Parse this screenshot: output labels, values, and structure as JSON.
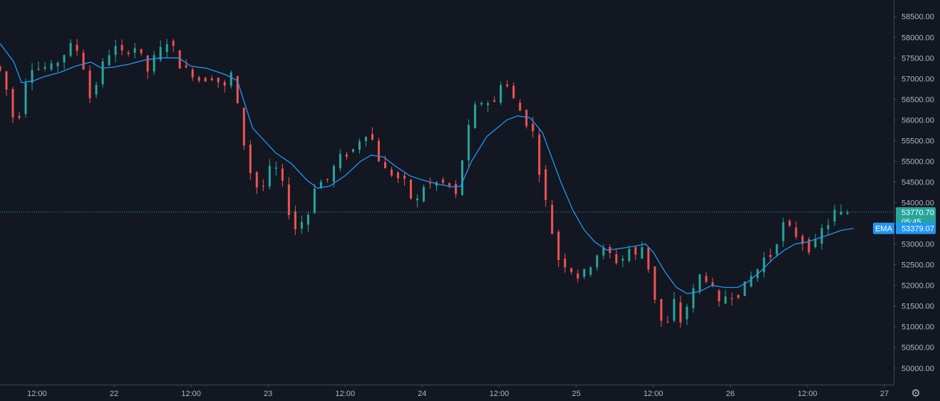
{
  "chart_data": {
    "type": "candlestick",
    "title": "",
    "price_scale": {
      "ylim": [
        49600,
        58900
      ],
      "ticks": [
        "50000.00",
        "50500.00",
        "51000.00",
        "51500.00",
        "52000.00",
        "52500.00",
        "53000.00",
        "53500.00",
        "54000.00",
        "54500.00",
        "55000.00",
        "55500.00",
        "56000.00",
        "56500.00",
        "57000.00",
        "57500.00",
        "58000.00",
        "58500.00"
      ]
    },
    "time_scale": {
      "ticks": [
        {
          "label": "12:00",
          "day": 21.5
        },
        {
          "label": "22",
          "day": 22.0
        },
        {
          "label": "12:00",
          "day": 22.5
        },
        {
          "label": "23",
          "day": 23.0
        },
        {
          "label": "12:00",
          "day": 23.5
        },
        {
          "label": "24",
          "day": 24.0
        },
        {
          "label": "12:00",
          "day": 24.5
        },
        {
          "label": "25",
          "day": 25.0
        },
        {
          "label": "12:00",
          "day": 25.5
        },
        {
          "label": "26",
          "day": 26.0
        },
        {
          "label": "12:00",
          "day": 26.5
        },
        {
          "label": "27",
          "day": 27.0
        }
      ],
      "xlim_day": [
        21.26,
        27.06
      ],
      "bar_interval_hours": 1
    },
    "price_path": [
      [
        21.26,
        57300
      ],
      [
        21.33,
        57100
      ],
      [
        21.37,
        56000
      ],
      [
        21.4,
        56150
      ],
      [
        21.44,
        56100
      ],
      [
        21.48,
        57300
      ],
      [
        21.55,
        57250
      ],
      [
        21.65,
        57300
      ],
      [
        21.72,
        57600
      ],
      [
        21.78,
        57900
      ],
      [
        21.85,
        57200
      ],
      [
        21.88,
        56500
      ],
      [
        21.93,
        56900
      ],
      [
        21.98,
        57500
      ],
      [
        22.05,
        57750
      ],
      [
        22.1,
        57600
      ],
      [
        22.2,
        57800
      ],
      [
        22.25,
        57100
      ],
      [
        22.3,
        57500
      ],
      [
        22.38,
        57900
      ],
      [
        22.42,
        57800
      ],
      [
        22.47,
        57300
      ],
      [
        22.52,
        57200
      ],
      [
        22.6,
        56950
      ],
      [
        22.7,
        57050
      ],
      [
        22.75,
        56700
      ],
      [
        22.8,
        57150
      ],
      [
        22.83,
        56700
      ],
      [
        22.86,
        55900
      ],
      [
        22.88,
        55500
      ],
      [
        22.92,
        54800
      ],
      [
        22.96,
        54400
      ],
      [
        23.0,
        54300
      ],
      [
        23.06,
        54900
      ],
      [
        23.1,
        54800
      ],
      [
        23.15,
        54300
      ],
      [
        23.2,
        53300
      ],
      [
        23.25,
        53500
      ],
      [
        23.3,
        53700
      ],
      [
        23.35,
        54500
      ],
      [
        23.42,
        54500
      ],
      [
        23.5,
        55100
      ],
      [
        23.58,
        55200
      ],
      [
        23.63,
        55500
      ],
      [
        23.7,
        55750
      ],
      [
        23.75,
        55100
      ],
      [
        23.8,
        54800
      ],
      [
        23.88,
        54600
      ],
      [
        23.93,
        54500
      ],
      [
        23.99,
        53900
      ],
      [
        24.05,
        54400
      ],
      [
        24.15,
        54500
      ],
      [
        24.22,
        54400
      ],
      [
        24.25,
        54000
      ],
      [
        24.28,
        54500
      ],
      [
        24.32,
        55500
      ],
      [
        24.38,
        56300
      ],
      [
        24.45,
        56500
      ],
      [
        24.5,
        56300
      ],
      [
        24.55,
        56900
      ],
      [
        24.6,
        56800
      ],
      [
        24.62,
        56600
      ],
      [
        24.68,
        56200
      ],
      [
        24.72,
        55900
      ],
      [
        24.76,
        55700
      ],
      [
        24.78,
        55300
      ],
      [
        24.8,
        54800
      ],
      [
        24.82,
        54200
      ],
      [
        24.86,
        53900
      ],
      [
        24.9,
        52900
      ],
      [
        24.93,
        52600
      ],
      [
        25.0,
        52400
      ],
      [
        25.05,
        52200
      ],
      [
        25.12,
        52400
      ],
      [
        25.2,
        52900
      ],
      [
        25.25,
        52800
      ],
      [
        25.32,
        52500
      ],
      [
        25.38,
        52900
      ],
      [
        25.43,
        52700
      ],
      [
        25.48,
        53000
      ],
      [
        25.5,
        52600
      ],
      [
        25.55,
        51700
      ],
      [
        25.58,
        51300
      ],
      [
        25.62,
        50800
      ],
      [
        25.67,
        51700
      ],
      [
        25.72,
        51100
      ],
      [
        25.78,
        51700
      ],
      [
        25.85,
        52300
      ],
      [
        25.92,
        52000
      ],
      [
        25.96,
        51500
      ],
      [
        26.02,
        51800
      ],
      [
        26.08,
        51700
      ],
      [
        26.15,
        52100
      ],
      [
        26.22,
        52400
      ],
      [
        26.28,
        52800
      ],
      [
        26.33,
        52600
      ],
      [
        26.35,
        53300
      ],
      [
        26.38,
        53500
      ],
      [
        26.42,
        53400
      ],
      [
        26.47,
        53200
      ],
      [
        26.52,
        53000
      ],
      [
        26.57,
        52800
      ],
      [
        26.62,
        53300
      ],
      [
        26.68,
        53500
      ],
      [
        26.72,
        53800
      ],
      [
        26.78,
        53700
      ],
      [
        26.8,
        53770.7
      ]
    ],
    "last_price": {
      "value": 53770.7,
      "label": "53770.70",
      "countdown": "05:45",
      "color": "#26a69a"
    },
    "series": [
      {
        "name": "EMA",
        "type": "line",
        "color": "#2196f3",
        "last_value": 53379.07,
        "last_label": "53379.07",
        "points": [
          [
            21.26,
            57850
          ],
          [
            21.35,
            57400
          ],
          [
            21.4,
            56900
          ],
          [
            21.48,
            56950
          ],
          [
            21.55,
            57050
          ],
          [
            21.65,
            57150
          ],
          [
            21.75,
            57300
          ],
          [
            21.85,
            57400
          ],
          [
            21.92,
            57250
          ],
          [
            22.0,
            57280
          ],
          [
            22.1,
            57350
          ],
          [
            22.2,
            57450
          ],
          [
            22.3,
            57500
          ],
          [
            22.42,
            57500
          ],
          [
            22.5,
            57300
          ],
          [
            22.6,
            57250
          ],
          [
            22.72,
            57100
          ],
          [
            22.8,
            56950
          ],
          [
            22.9,
            55800
          ],
          [
            22.95,
            55600
          ],
          [
            23.05,
            55200
          ],
          [
            23.15,
            54950
          ],
          [
            23.25,
            54550
          ],
          [
            23.32,
            54350
          ],
          [
            23.4,
            54400
          ],
          [
            23.5,
            54650
          ],
          [
            23.6,
            55000
          ],
          [
            23.67,
            55150
          ],
          [
            23.75,
            55100
          ],
          [
            23.82,
            54900
          ],
          [
            23.92,
            54650
          ],
          [
            24.0,
            54550
          ],
          [
            24.1,
            54450
          ],
          [
            24.2,
            54380
          ],
          [
            24.25,
            54400
          ],
          [
            24.32,
            55000
          ],
          [
            24.42,
            55600
          ],
          [
            24.55,
            56000
          ],
          [
            24.62,
            56100
          ],
          [
            24.7,
            56050
          ],
          [
            24.78,
            55700
          ],
          [
            24.84,
            55100
          ],
          [
            24.9,
            54500
          ],
          [
            24.98,
            53800
          ],
          [
            25.05,
            53350
          ],
          [
            25.12,
            53050
          ],
          [
            25.2,
            52850
          ],
          [
            25.3,
            52900
          ],
          [
            25.38,
            52950
          ],
          [
            25.45,
            53000
          ],
          [
            25.5,
            52800
          ],
          [
            25.58,
            52300
          ],
          [
            25.65,
            51950
          ],
          [
            25.72,
            51800
          ],
          [
            25.8,
            51850
          ],
          [
            25.88,
            52000
          ],
          [
            25.96,
            51950
          ],
          [
            26.05,
            51950
          ],
          [
            26.12,
            52100
          ],
          [
            26.2,
            52350
          ],
          [
            26.28,
            52650
          ],
          [
            26.35,
            52850
          ],
          [
            26.42,
            53000
          ],
          [
            26.5,
            53050
          ],
          [
            26.58,
            53150
          ],
          [
            26.66,
            53250
          ],
          [
            26.72,
            53330
          ],
          [
            26.8,
            53379.07
          ]
        ]
      }
    ],
    "xlabel": "",
    "ylabel": ""
  },
  "ui": {
    "ema_badge": "EMA",
    "settings_icon": "gear-icon",
    "colors": {
      "background": "#131722",
      "up": "#26a69a",
      "down": "#ef5350",
      "ema": "#2196f3",
      "axis_text": "#b2b5be",
      "axis_line": "#2a2e39"
    }
  }
}
